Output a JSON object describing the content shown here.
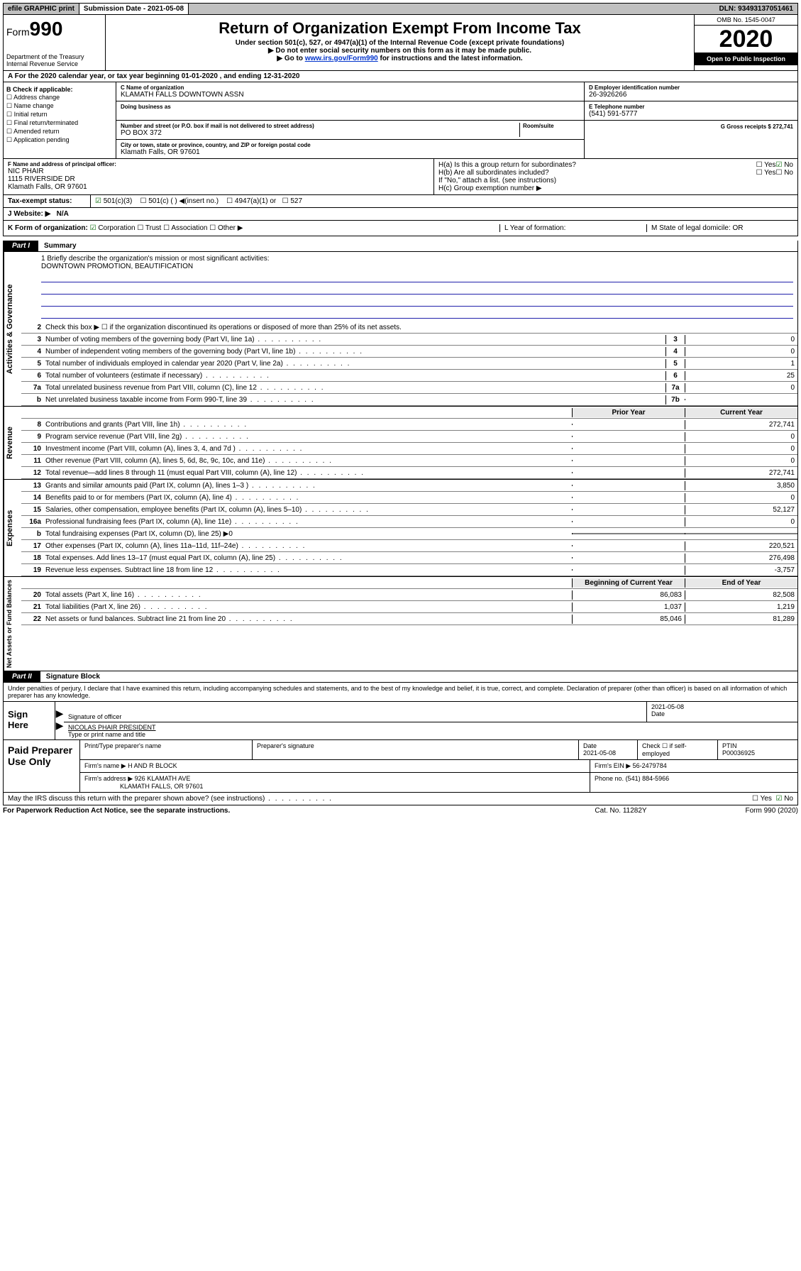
{
  "topbar": {
    "efile": "efile GRAPHIC print",
    "submission_label": "Submission Date - 2021-05-08",
    "dln": "DLN: 93493137051461"
  },
  "header": {
    "form_label": "Form",
    "form_number": "990",
    "dept": "Department of the Treasury",
    "irs": "Internal Revenue Service",
    "title": "Return of Organization Exempt From Income Tax",
    "subtitle": "Under section 501(c), 527, or 4947(a)(1) of the Internal Revenue Code (except private foundations)",
    "bullet1": "Do not enter social security numbers on this form as it may be made public.",
    "bullet2_pre": "Go to ",
    "bullet2_link": "www.irs.gov/Form990",
    "bullet2_post": " for instructions and the latest information.",
    "omb": "OMB No. 1545-0047",
    "year": "2020",
    "open": "Open to Public Inspection"
  },
  "row_a": "A For the 2020 calendar year, or tax year beginning 01-01-2020   , and ending 12-31-2020",
  "col_b": {
    "header": "B Check if applicable:",
    "items": [
      "Address change",
      "Name change",
      "Initial return",
      "Final return/terminated",
      "Amended return",
      "Application pending"
    ]
  },
  "col_c": {
    "name_lbl": "C Name of organization",
    "name": "KLAMATH FALLS DOWNTOWN ASSN",
    "dba_lbl": "Doing business as",
    "addr_lbl": "Number and street (or P.O. box if mail is not delivered to street address)",
    "room_lbl": "Room/suite",
    "addr": "PO BOX 372",
    "city_lbl": "City or town, state or province, country, and ZIP or foreign postal code",
    "city": "Klamath Falls, OR  97601"
  },
  "col_right": {
    "d_lbl": "D Employer identification number",
    "d_val": "26-3926266",
    "e_lbl": "E Telephone number",
    "e_val": "(541) 591-5777",
    "g_lbl": "G Gross receipts $ 272,741"
  },
  "f_section": {
    "f_lbl": "F Name and address of principal officer:",
    "f_name": "NIC PHAIR",
    "f_addr1": "1115 RIVERSIDE DR",
    "f_addr2": "Klamath Falls, OR  97601",
    "ha": "H(a)  Is this a group return for subordinates?",
    "hb": "H(b)  Are all subordinates included?",
    "hb_note": "If \"No,\" attach a list. (see instructions)",
    "hc": "H(c)  Group exemption number ▶",
    "yes": "Yes",
    "no": "No"
  },
  "tax_status": {
    "label": "Tax-exempt status:",
    "o1": "501(c)(3)",
    "o2": "501(c) (  ) ◀(insert no.)",
    "o3": "4947(a)(1) or",
    "o4": "527"
  },
  "website": {
    "label": "J  Website: ▶",
    "value": "N/A"
  },
  "k_row": {
    "k": "K Form of organization:",
    "corp": "Corporation",
    "trust": "Trust",
    "assoc": "Association",
    "other": "Other ▶",
    "l": "L Year of formation:",
    "m": "M State of legal domicile: OR"
  },
  "part1": {
    "tab": "Part I",
    "title": "Summary"
  },
  "mission": {
    "q": "1   Briefly describe the organization's mission or most significant activities:",
    "text": "DOWNTOWN PROMOTION, BEAUTIFICATION"
  },
  "governance_lines": [
    {
      "n": "2",
      "d": "Check this box ▶ ☐  if the organization discontinued its operations or disposed of more than 25% of its net assets."
    },
    {
      "n": "3",
      "d": "Number of voting members of the governing body (Part VI, line 1a)",
      "box": "3",
      "v": "0"
    },
    {
      "n": "4",
      "d": "Number of independent voting members of the governing body (Part VI, line 1b)",
      "box": "4",
      "v": "0"
    },
    {
      "n": "5",
      "d": "Total number of individuals employed in calendar year 2020 (Part V, line 2a)",
      "box": "5",
      "v": "1"
    },
    {
      "n": "6",
      "d": "Total number of volunteers (estimate if necessary)",
      "box": "6",
      "v": "25"
    },
    {
      "n": "7a",
      "d": "Total unrelated business revenue from Part VIII, column (C), line 12",
      "box": "7a",
      "v": "0"
    },
    {
      "n": "b",
      "d": "Net unrelated business taxable income from Form 990-T, line 39",
      "box": "7b",
      "v": ""
    }
  ],
  "rev_header": {
    "prior": "Prior Year",
    "current": "Current Year"
  },
  "revenue_lines": [
    {
      "n": "8",
      "d": "Contributions and grants (Part VIII, line 1h)",
      "p": "",
      "c": "272,741"
    },
    {
      "n": "9",
      "d": "Program service revenue (Part VIII, line 2g)",
      "p": "",
      "c": "0"
    },
    {
      "n": "10",
      "d": "Investment income (Part VIII, column (A), lines 3, 4, and 7d )",
      "p": "",
      "c": "0"
    },
    {
      "n": "11",
      "d": "Other revenue (Part VIII, column (A), lines 5, 6d, 8c, 9c, 10c, and 11e)",
      "p": "",
      "c": "0"
    },
    {
      "n": "12",
      "d": "Total revenue—add lines 8 through 11 (must equal Part VIII, column (A), line 12)",
      "p": "",
      "c": "272,741"
    }
  ],
  "expense_lines": [
    {
      "n": "13",
      "d": "Grants and similar amounts paid (Part IX, column (A), lines 1–3 )",
      "p": "",
      "c": "3,850"
    },
    {
      "n": "14",
      "d": "Benefits paid to or for members (Part IX, column (A), line 4)",
      "p": "",
      "c": "0"
    },
    {
      "n": "15",
      "d": "Salaries, other compensation, employee benefits (Part IX, column (A), lines 5–10)",
      "p": "",
      "c": "52,127"
    },
    {
      "n": "16a",
      "d": "Professional fundraising fees (Part IX, column (A), line 11e)",
      "p": "",
      "c": "0"
    },
    {
      "n": "b",
      "d": "Total fundraising expenses (Part IX, column (D), line 25)  ▶0",
      "shaded": true
    },
    {
      "n": "17",
      "d": "Other expenses (Part IX, column (A), lines 11a–11d, 11f–24e)",
      "p": "",
      "c": "220,521"
    },
    {
      "n": "18",
      "d": "Total expenses. Add lines 13–17 (must equal Part IX, column (A), line 25)",
      "p": "",
      "c": "276,498"
    },
    {
      "n": "19",
      "d": "Revenue less expenses. Subtract line 18 from line 12",
      "p": "",
      "c": "-3,757"
    }
  ],
  "net_header": {
    "prior": "Beginning of Current Year",
    "current": "End of Year"
  },
  "net_lines": [
    {
      "n": "20",
      "d": "Total assets (Part X, line 16)",
      "p": "86,083",
      "c": "82,508"
    },
    {
      "n": "21",
      "d": "Total liabilities (Part X, line 26)",
      "p": "1,037",
      "c": "1,219"
    },
    {
      "n": "22",
      "d": "Net assets or fund balances. Subtract line 21 from line 20",
      "p": "85,046",
      "c": "81,289"
    }
  ],
  "side_labels": {
    "gov": "Activities & Governance",
    "rev": "Revenue",
    "exp": "Expenses",
    "net": "Net Assets or Fund Balances"
  },
  "part2": {
    "tab": "Part II",
    "title": "Signature Block"
  },
  "perjury": "Under penalties of perjury, I declare that I have examined this return, including accompanying schedules and statements, and to the best of my knowledge and belief, it is true, correct, and complete. Declaration of preparer (other than officer) is based on all information of which preparer has any knowledge.",
  "sign": {
    "here": "Sign Here",
    "sig_lbl": "Signature of officer",
    "date": "2021-05-08",
    "date_lbl": "Date",
    "name": "NICOLAS PHAIR PRESIDENT",
    "name_lbl": "Type or print name and title"
  },
  "paid": {
    "label": "Paid Preparer Use Only",
    "print_lbl": "Print/Type preparer's name",
    "sig_lbl": "Preparer's signature",
    "date_lbl": "Date",
    "date": "2021-05-08",
    "check_lbl": "Check ☐ if self-employed",
    "ptin_lbl": "PTIN",
    "ptin": "P00036925",
    "firm_name_lbl": "Firm's name     ▶",
    "firm_name": "H AND R BLOCK",
    "firm_ein_lbl": "Firm's EIN ▶",
    "firm_ein": "56-2479784",
    "firm_addr_lbl": "Firm's address ▶",
    "firm_addr1": "926 KLAMATH AVE",
    "firm_addr2": "KLAMATH FALLS, OR  97601",
    "phone_lbl": "Phone no.",
    "phone": "(541) 884-5966"
  },
  "discuss": {
    "q": "May the IRS discuss this return with the preparer shown above? (see instructions)",
    "yes": "Yes",
    "no": "No"
  },
  "footer": {
    "l": "For Paperwork Reduction Act Notice, see the separate instructions.",
    "c": "Cat. No. 11282Y",
    "r": "Form 990 (2020)"
  }
}
